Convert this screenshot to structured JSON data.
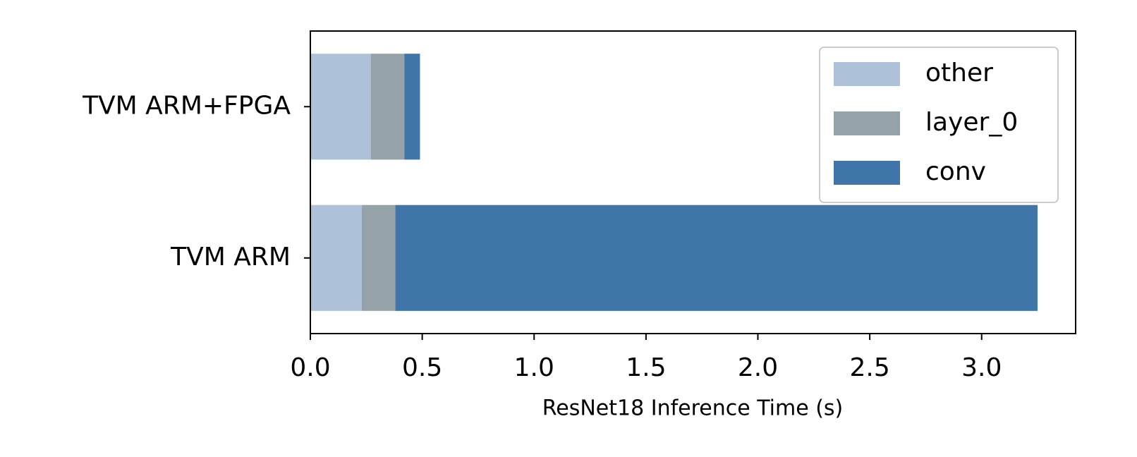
{
  "chart_data": {
    "type": "barh_stacked",
    "xlabel": "ResNet18 Inference Time (s)",
    "categories": [
      "TVM ARM+FPGA",
      "TVM ARM"
    ],
    "series": [
      {
        "name": "other",
        "color": "#adc2d8",
        "values": [
          0.27,
          0.23
        ]
      },
      {
        "name": "layer_0",
        "color": "#95a3a8",
        "values": [
          0.15,
          0.15
        ]
      },
      {
        "name": "conv",
        "color": "#3f75a9",
        "values": [
          0.07,
          2.87
        ]
      }
    ],
    "xlim": [
      0,
      3.42
    ],
    "xticks": [
      {
        "value": 0,
        "label": "0.0"
      },
      0.5,
      {
        "value": 1,
        "label": "1.0"
      },
      1.5,
      {
        "value": 2,
        "label": "2.0"
      },
      2.5,
      {
        "value": 3,
        "label": "3.0"
      }
    ],
    "legend": "upper right"
  }
}
